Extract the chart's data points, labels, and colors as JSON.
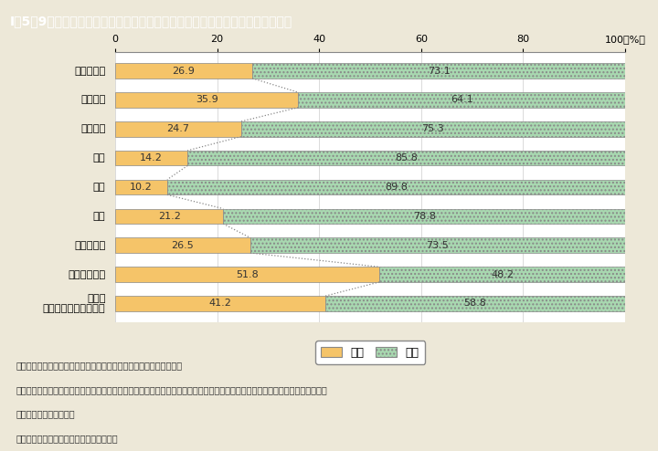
{
  "title": "I－5－9図　専門分野別に見た大学等の研究本務者の男女別割合（平成２８年）",
  "categories": [
    "専門分野計",
    "人文科学",
    "社会科学",
    "理学",
    "工学",
    "農学",
    "医学・歯学",
    "薬学・看護等",
    "その他\n（心理学，家政など）"
  ],
  "female_values": [
    26.9,
    35.9,
    24.7,
    14.2,
    10.2,
    21.2,
    26.5,
    51.8,
    41.2
  ],
  "male_values": [
    73.1,
    64.1,
    75.3,
    85.8,
    89.8,
    78.8,
    73.5,
    48.2,
    58.8
  ],
  "female_color": "#F5C469",
  "male_color_face": "#A8D8B0",
  "male_hatch": "....",
  "bar_height": 0.52,
  "xlim": [
    0,
    100
  ],
  "xticks": [
    0,
    20,
    40,
    60,
    80,
    100
  ],
  "background_color": "#EDE8D8",
  "plot_bg_color": "#FFFFFF",
  "title_bg_color": "#1AAFCB",
  "title_text_color": "#FFFFFF",
  "legend_female": "女性",
  "legend_male": "男性",
  "note_lines": [
    "（備考）１．総務省「科学技術研究調査」（平成２８年）より作成。",
    "　　　　２．「大学等」は，大学の学部（大学院の研究科を含む。），短期大学，高等専門学校，大学附置研究所及び大学共同利",
    "　　　　　　用機関等。",
    "　　　　３．平成２８年３月３１日現在。"
  ]
}
